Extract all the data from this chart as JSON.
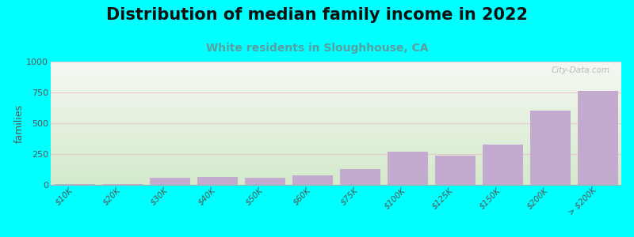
{
  "title": "Distribution of median family income in 2022",
  "subtitle": "White residents in Sloughhouse, CA",
  "categories": [
    "$10K",
    "$20K",
    "$30K",
    "$40K",
    "$50K",
    "$60K",
    "$75K",
    "$100K",
    "$125K",
    "$150K",
    "$200K",
    "> $200K"
  ],
  "values": [
    5,
    8,
    55,
    65,
    60,
    75,
    130,
    270,
    240,
    330,
    600,
    765
  ],
  "bar_color": "#C4AACF",
  "background_outer": "#00FFFF",
  "bg_top_color": "#F5F8F2",
  "bg_bottom_color": "#D4EACC",
  "ylabel": "families",
  "ylim": [
    0,
    1000
  ],
  "yticks": [
    0,
    250,
    500,
    750,
    1000
  ],
  "watermark": "City-Data.com",
  "title_fontsize": 15,
  "subtitle_fontsize": 10,
  "ylabel_fontsize": 9,
  "tick_fontsize": 7.5,
  "grid_color": "#E8C8C8",
  "subtitle_color": "#5A9EA0",
  "title_color": "#111111"
}
